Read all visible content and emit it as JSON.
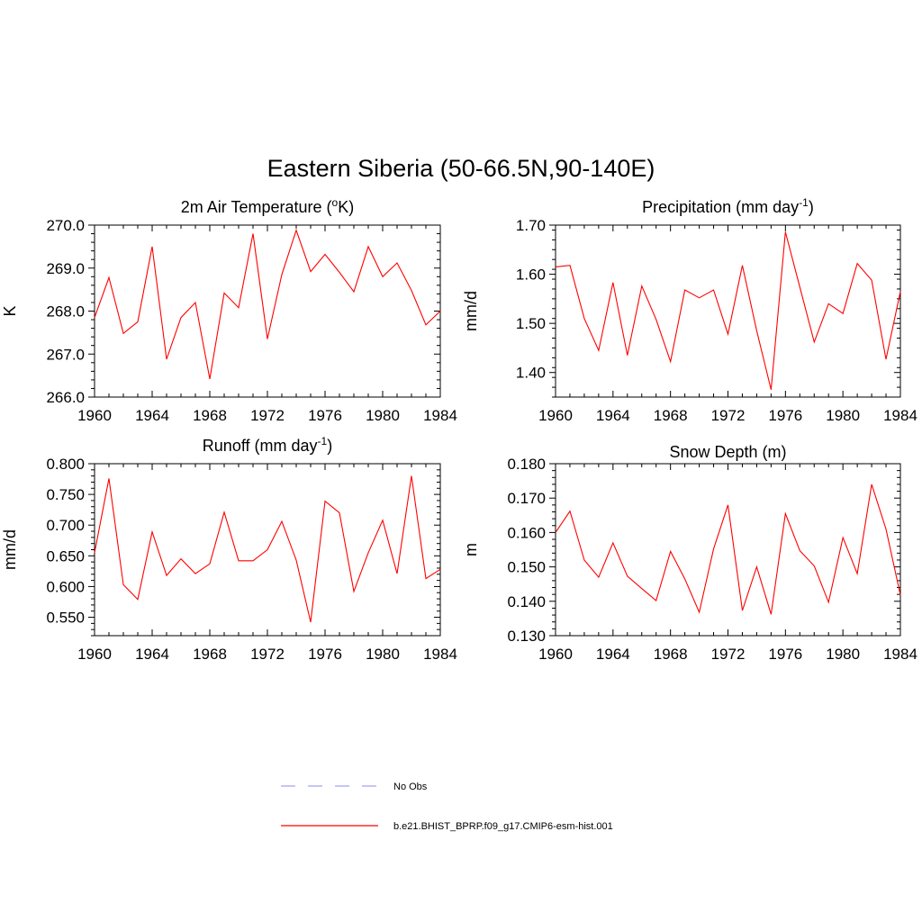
{
  "figure": {
    "title": "Eastern Siberia (50-66.5N,90-140E)"
  },
  "legend": {
    "entries": [
      {
        "label": "No Obs",
        "color": "#a3a3f0",
        "dashed": true
      },
      {
        "label": "b.e21.BHIST_BPRP.f09_g17.CMIP6-esm-hist.001",
        "color": "#ff0000",
        "dashed": false
      }
    ]
  },
  "chart_data": [
    {
      "type": "line",
      "title": "2m Air Temperature (oK)",
      "title_parts": [
        "2m Air Temperature (",
        "o",
        "K)"
      ],
      "title_sup_index": 1,
      "ylabel": "K",
      "xlim": [
        1960,
        1984
      ],
      "ylim": [
        266.0,
        270.0
      ],
      "xticks": [
        1960,
        1964,
        1968,
        1972,
        1976,
        1980,
        1984
      ],
      "yticks": [
        266.0,
        267.0,
        268.0,
        269.0,
        270.0
      ],
      "ytick_labels": [
        "266.0",
        "267.0",
        "268.0",
        "269.0",
        "270.0"
      ],
      "y_minor_step": 0.2,
      "series": [
        {
          "color": "#ff0000",
          "x": [
            1960,
            1961,
            1962,
            1963,
            1964,
            1965,
            1966,
            1967,
            1968,
            1969,
            1970,
            1971,
            1972,
            1973,
            1974,
            1975,
            1976,
            1977,
            1978,
            1979,
            1980,
            1981,
            1982,
            1983,
            1984
          ],
          "values": [
            267.85,
            268.78,
            267.48,
            267.75,
            269.5,
            266.88,
            267.85,
            268.2,
            266.42,
            268.42,
            268.08,
            269.8,
            267.35,
            268.85,
            269.88,
            268.92,
            269.32,
            268.9,
            268.45,
            269.5,
            268.8,
            269.12,
            268.48,
            267.68,
            268.0
          ]
        }
      ]
    },
    {
      "type": "line",
      "title": "Precipitation (mm day-1)",
      "title_parts": [
        "Precipitation (mm day",
        "-1",
        ")"
      ],
      "title_sup_index": 1,
      "ylabel": "mm/d",
      "xlim": [
        1960,
        1984
      ],
      "ylim": [
        1.35,
        1.7
      ],
      "xticks": [
        1960,
        1964,
        1968,
        1972,
        1976,
        1980,
        1984
      ],
      "yticks": [
        1.4,
        1.5,
        1.6,
        1.7
      ],
      "ytick_labels": [
        "1.40",
        "1.50",
        "1.60",
        "1.70"
      ],
      "y_minor_step": 0.02,
      "series": [
        {
          "color": "#ff0000",
          "x": [
            1960,
            1961,
            1962,
            1963,
            1964,
            1965,
            1966,
            1967,
            1968,
            1969,
            1970,
            1971,
            1972,
            1973,
            1974,
            1975,
            1976,
            1977,
            1978,
            1979,
            1980,
            1981,
            1982,
            1983,
            1984
          ],
          "values": [
            1.615,
            1.618,
            1.51,
            1.445,
            1.583,
            1.435,
            1.576,
            1.508,
            1.422,
            1.568,
            1.552,
            1.568,
            1.478,
            1.618,
            1.485,
            1.365,
            1.686,
            1.574,
            1.462,
            1.54,
            1.52,
            1.622,
            1.588,
            1.427,
            1.565
          ]
        }
      ]
    },
    {
      "type": "line",
      "title": "Runoff (mm day-1)",
      "title_parts": [
        "Runoff (mm day",
        "-1",
        ")"
      ],
      "title_sup_index": 1,
      "ylabel": "mm/d",
      "xlim": [
        1960,
        1984
      ],
      "ylim": [
        0.52,
        0.8
      ],
      "xticks": [
        1960,
        1964,
        1968,
        1972,
        1976,
        1980,
        1984
      ],
      "yticks": [
        0.55,
        0.6,
        0.65,
        0.7,
        0.75,
        0.8
      ],
      "ytick_labels": [
        "0.550",
        "0.600",
        "0.650",
        "0.700",
        "0.750",
        "0.800"
      ],
      "y_minor_step": 0.01,
      "series": [
        {
          "color": "#ff0000",
          "x": [
            1960,
            1961,
            1962,
            1963,
            1964,
            1965,
            1966,
            1967,
            1968,
            1969,
            1970,
            1971,
            1972,
            1973,
            1974,
            1975,
            1976,
            1977,
            1978,
            1979,
            1980,
            1981,
            1982,
            1983,
            1984
          ],
          "values": [
            0.655,
            0.776,
            0.603,
            0.579,
            0.689,
            0.618,
            0.645,
            0.621,
            0.637,
            0.721,
            0.642,
            0.642,
            0.66,
            0.706,
            0.643,
            0.542,
            0.739,
            0.72,
            0.592,
            0.655,
            0.708,
            0.621,
            0.78,
            0.613,
            0.628
          ]
        }
      ]
    },
    {
      "type": "line",
      "title": "Snow Depth (m)",
      "title_parts": [
        "Snow Depth (m)",
        "",
        ""
      ],
      "title_sup_index": -1,
      "ylabel": "m",
      "xlim": [
        1960,
        1984
      ],
      "ylim": [
        0.13,
        0.18
      ],
      "xticks": [
        1960,
        1964,
        1968,
        1972,
        1976,
        1980,
        1984
      ],
      "yticks": [
        0.13,
        0.14,
        0.15,
        0.16,
        0.17,
        0.18
      ],
      "ytick_labels": [
        "0.130",
        "0.140",
        "0.150",
        "0.160",
        "0.170",
        "0.180"
      ],
      "y_minor_step": 0.002,
      "series": [
        {
          "color": "#ff0000",
          "x": [
            1960,
            1961,
            1962,
            1963,
            1964,
            1965,
            1966,
            1967,
            1968,
            1969,
            1970,
            1971,
            1972,
            1973,
            1974,
            1975,
            1976,
            1977,
            1978,
            1979,
            1980,
            1981,
            1982,
            1983,
            1984
          ],
          "values": [
            0.16,
            0.1662,
            0.152,
            0.147,
            0.157,
            0.1473,
            0.1437,
            0.1402,
            0.1545,
            0.1465,
            0.1368,
            0.1552,
            0.168,
            0.1373,
            0.15,
            0.1362,
            0.1655,
            0.1547,
            0.1503,
            0.1397,
            0.1585,
            0.148,
            0.174,
            0.161,
            0.1418
          ]
        }
      ]
    }
  ]
}
